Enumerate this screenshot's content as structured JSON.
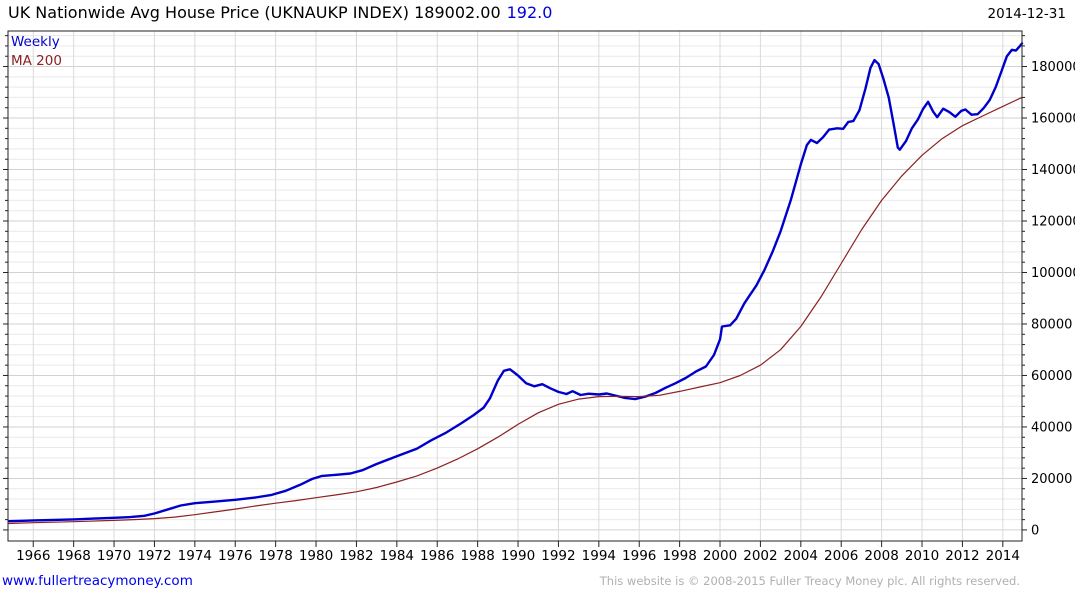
{
  "header": {
    "title": "UK Nationwide Avg House Price (UKNAUKP INDEX) 189002.00",
    "change_value": "192.0",
    "date": "2014-12-31"
  },
  "legend": {
    "items": [
      {
        "label": "Weekly",
        "color": "#0000cc"
      },
      {
        "label": "MA 200",
        "color": "#8b2222"
      }
    ]
  },
  "footer": {
    "site_link": "www.fullertreacymoney.com",
    "copyright": "This website is © 2008-2015 Fuller Treacy Money plc. All rights reserved."
  },
  "chart_data": {
    "type": "line",
    "title": "UK Nationwide Avg House Price (UKNAUKP INDEX)",
    "last_price": 189002.0,
    "last_change": 192.0,
    "as_of_date": "2014-12-31",
    "xlabel": "",
    "ylabel": "",
    "grid": true,
    "legend_position": "top-left",
    "x_axis": {
      "range": [
        1964.75,
        2014.95
      ],
      "tick_years": [
        1966,
        1968,
        1970,
        1972,
        1974,
        1976,
        1978,
        1980,
        1982,
        1984,
        1986,
        1988,
        1990,
        1992,
        1994,
        1996,
        1998,
        2000,
        2002,
        2004,
        2006,
        2008,
        2010,
        2012,
        2014
      ],
      "tick_labels": [
        "1966",
        "1968",
        "1970",
        "1972",
        "1974",
        "1976",
        "1978",
        "1980",
        "1982",
        "1984",
        "1986",
        "1988",
        "1990",
        "1992",
        "1994",
        "1996",
        "1998",
        "2000",
        "2002",
        "2004",
        "2006",
        "2008",
        "2010",
        "2012",
        "2014"
      ]
    },
    "y_axis": {
      "range": [
        -4300,
        193800
      ],
      "major_step": 20000,
      "minor_step": 4000,
      "major_values": [
        0,
        20000,
        40000,
        60000,
        80000,
        100000,
        120000,
        140000,
        160000,
        180000
      ],
      "tick_labels": [
        "0",
        "20000",
        "40000",
        "60000",
        "80000",
        "100000",
        "120000",
        "140000",
        "160000",
        "180000"
      ]
    },
    "series": [
      {
        "name": "Weekly",
        "color": "#0000cc",
        "stroke_width": 2.4,
        "points": [
          [
            1964.8,
            3400
          ],
          [
            1965.5,
            3550
          ],
          [
            1966,
            3700
          ],
          [
            1967,
            3900
          ],
          [
            1968,
            4100
          ],
          [
            1969,
            4400
          ],
          [
            1970,
            4700
          ],
          [
            1970.8,
            5000
          ],
          [
            1971.5,
            5500
          ],
          [
            1972,
            6400
          ],
          [
            1972.6,
            7800
          ],
          [
            1973.3,
            9500
          ],
          [
            1974,
            10400
          ],
          [
            1975,
            11000
          ],
          [
            1976,
            11700
          ],
          [
            1977,
            12600
          ],
          [
            1977.8,
            13600
          ],
          [
            1978.5,
            15200
          ],
          [
            1979.2,
            17500
          ],
          [
            1979.8,
            19800
          ],
          [
            1980.3,
            21000
          ],
          [
            1981,
            21400
          ],
          [
            1981.7,
            21900
          ],
          [
            1982.3,
            23200
          ],
          [
            1983,
            25600
          ],
          [
            1984,
            28600
          ],
          [
            1985,
            31600
          ],
          [
            1985.7,
            34800
          ],
          [
            1986.4,
            37600
          ],
          [
            1987.2,
            41500
          ],
          [
            1987.8,
            44600
          ],
          [
            1988.3,
            47500
          ],
          [
            1988.6,
            51000
          ],
          [
            1989,
            58000
          ],
          [
            1989.3,
            61800
          ],
          [
            1989.6,
            62400
          ],
          [
            1990,
            60000
          ],
          [
            1990.4,
            57000
          ],
          [
            1990.8,
            55800
          ],
          [
            1991.2,
            56600
          ],
          [
            1991.6,
            55000
          ],
          [
            1992,
            53600
          ],
          [
            1992.4,
            52800
          ],
          [
            1992.7,
            53900
          ],
          [
            1993.1,
            52400
          ],
          [
            1993.5,
            52900
          ],
          [
            1994,
            52600
          ],
          [
            1994.4,
            53000
          ],
          [
            1994.8,
            52200
          ],
          [
            1995.3,
            51300
          ],
          [
            1995.8,
            50800
          ],
          [
            1996.3,
            51800
          ],
          [
            1996.8,
            53200
          ],
          [
            1997.3,
            55200
          ],
          [
            1997.8,
            57000
          ],
          [
            1998.3,
            59000
          ],
          [
            1998.8,
            61500
          ],
          [
            1999.3,
            63500
          ],
          [
            1999.7,
            68000
          ],
          [
            2000,
            74000
          ],
          [
            2000.1,
            79000
          ],
          [
            2000.5,
            79500
          ],
          [
            2000.8,
            82000
          ],
          [
            2001.2,
            88000
          ],
          [
            2001.5,
            91500
          ],
          [
            2001.8,
            95000
          ],
          [
            2002.2,
            101000
          ],
          [
            2002.6,
            108000
          ],
          [
            2003,
            116000
          ],
          [
            2003.5,
            128000
          ],
          [
            2004,
            142000
          ],
          [
            2004.3,
            149500
          ],
          [
            2004.5,
            151500
          ],
          [
            2004.8,
            150300
          ],
          [
            2005.1,
            152500
          ],
          [
            2005.4,
            155500
          ],
          [
            2005.8,
            156000
          ],
          [
            2006.1,
            155800
          ],
          [
            2006.35,
            158500
          ],
          [
            2006.6,
            158800
          ],
          [
            2006.9,
            163000
          ],
          [
            2007.2,
            171500
          ],
          [
            2007.45,
            179500
          ],
          [
            2007.65,
            182500
          ],
          [
            2007.85,
            181000
          ],
          [
            2008.1,
            175000
          ],
          [
            2008.35,
            168000
          ],
          [
            2008.6,
            157500
          ],
          [
            2008.8,
            148500
          ],
          [
            2008.9,
            147700
          ],
          [
            2009.2,
            151000
          ],
          [
            2009.5,
            156000
          ],
          [
            2009.8,
            159500
          ],
          [
            2010.05,
            163500
          ],
          [
            2010.3,
            166300
          ],
          [
            2010.55,
            162500
          ],
          [
            2010.75,
            160300
          ],
          [
            2011.05,
            163600
          ],
          [
            2011.35,
            162300
          ],
          [
            2011.65,
            160500
          ],
          [
            2011.95,
            162800
          ],
          [
            2012.15,
            163300
          ],
          [
            2012.45,
            161300
          ],
          [
            2012.75,
            161500
          ],
          [
            2013.05,
            163800
          ],
          [
            2013.35,
            167000
          ],
          [
            2013.65,
            172000
          ],
          [
            2013.95,
            178500
          ],
          [
            2014.2,
            184000
          ],
          [
            2014.45,
            186500
          ],
          [
            2014.65,
            186200
          ],
          [
            2014.85,
            188000
          ],
          [
            2014.95,
            189002
          ]
        ]
      },
      {
        "name": "MA 200",
        "color": "#8b2222",
        "stroke_width": 1.2,
        "points": [
          [
            1964.8,
            2500
          ],
          [
            1966,
            2800
          ],
          [
            1968,
            3200
          ],
          [
            1970,
            3700
          ],
          [
            1971,
            4000
          ],
          [
            1972,
            4400
          ],
          [
            1973,
            5000
          ],
          [
            1974,
            5900
          ],
          [
            1975,
            7000
          ],
          [
            1976,
            8100
          ],
          [
            1977,
            9300
          ],
          [
            1978,
            10400
          ],
          [
            1979,
            11400
          ],
          [
            1980,
            12500
          ],
          [
            1981,
            13600
          ],
          [
            1982,
            14800
          ],
          [
            1983,
            16500
          ],
          [
            1984,
            18600
          ],
          [
            1985,
            21000
          ],
          [
            1986,
            24000
          ],
          [
            1987,
            27500
          ],
          [
            1988,
            31500
          ],
          [
            1989,
            36000
          ],
          [
            1990,
            41000
          ],
          [
            1991,
            45500
          ],
          [
            1992,
            48800
          ],
          [
            1993,
            50800
          ],
          [
            1994,
            51800
          ],
          [
            1995,
            51900
          ],
          [
            1996,
            51800
          ],
          [
            1997,
            52300
          ],
          [
            1998,
            53800
          ],
          [
            1999,
            55500
          ],
          [
            2000,
            57200
          ],
          [
            2001,
            60000
          ],
          [
            2002,
            64000
          ],
          [
            2003,
            70000
          ],
          [
            2004,
            79000
          ],
          [
            2005,
            90500
          ],
          [
            2006,
            103500
          ],
          [
            2007,
            116500
          ],
          [
            2008,
            128000
          ],
          [
            2009,
            137500
          ],
          [
            2010,
            145500
          ],
          [
            2011,
            152000
          ],
          [
            2012,
            157000
          ],
          [
            2013,
            160800
          ],
          [
            2014,
            164500
          ],
          [
            2014.95,
            168000
          ]
        ]
      }
    ],
    "colors": {
      "grid_minor": "#e9e9e9",
      "grid_major": "#d2d2d2",
      "grid_vertical": "#dadada",
      "axis": "#222222",
      "tick_label": "#000000"
    }
  }
}
